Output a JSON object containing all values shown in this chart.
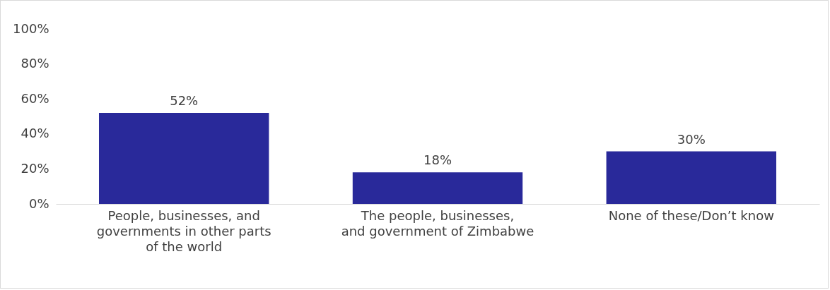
{
  "chart_data": {
    "type": "bar",
    "categories": [
      "People, businesses, and governments in other parts of the world",
      "The people, businesses, and government of Zimbabwe",
      "None of these/Don’t know"
    ],
    "values": [
      52,
      18,
      30
    ],
    "color": "#29299a",
    "value_labels": [
      "52%",
      "18%",
      "30%"
    ],
    "ylim": [
      0,
      100
    ],
    "yticks": [
      {
        "value": 0,
        "label": "0%"
      },
      {
        "value": 20,
        "label": "20%"
      },
      {
        "value": 40,
        "label": "40%"
      },
      {
        "value": 60,
        "label": "60%"
      },
      {
        "value": 80,
        "label": "80%"
      },
      {
        "value": 100,
        "label": "100%"
      }
    ],
    "grid": false
  }
}
